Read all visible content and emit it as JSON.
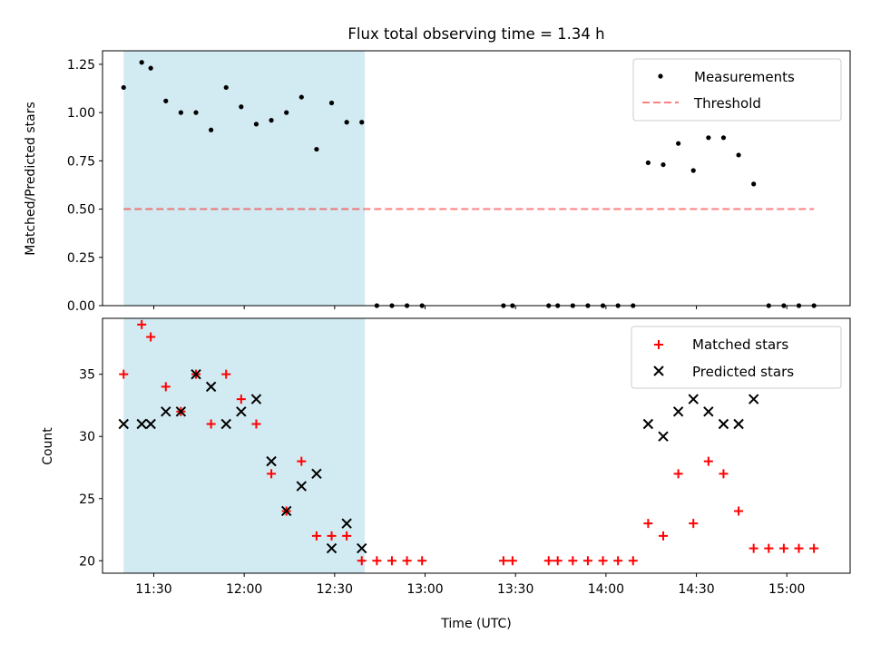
{
  "title": "Flux total observing time = 1.34 h",
  "colors": {
    "shade": "#add8e6",
    "measurement": "#000000",
    "threshold": "#ff0000",
    "matched": "#ff0000",
    "predicted": "#000000"
  },
  "chart_data": [
    {
      "type": "scatter",
      "ylabel": "Matched/Predicted stars",
      "xlim": [
        "11:13",
        "15:21"
      ],
      "ylim": [
        0,
        1.32
      ],
      "yticks": [
        0.0,
        0.25,
        0.5,
        0.75,
        1.0,
        1.25
      ],
      "ytick_labels": [
        "0.00",
        "0.25",
        "0.50",
        "0.75",
        "1.00",
        "1.25"
      ],
      "shaded_interval": [
        "11:20",
        "12:40"
      ],
      "legend": {
        "position": "upper right",
        "measurements_label": "Measurements",
        "threshold_label": "Threshold"
      },
      "threshold": {
        "value": 0.5,
        "x_start": "11:20",
        "x_end": "15:09"
      },
      "series": [
        {
          "name": "Measurements",
          "points": [
            [
              "11:20",
              1.13
            ],
            [
              "11:26",
              1.26
            ],
            [
              "11:29",
              1.23
            ],
            [
              "11:34",
              1.06
            ],
            [
              "11:39",
              1.0
            ],
            [
              "11:44",
              1.0
            ],
            [
              "11:49",
              0.91
            ],
            [
              "11:54",
              1.13
            ],
            [
              "11:59",
              1.03
            ],
            [
              "12:04",
              0.94
            ],
            [
              "12:09",
              0.96
            ],
            [
              "12:14",
              1.0
            ],
            [
              "12:19",
              1.08
            ],
            [
              "12:24",
              0.81
            ],
            [
              "12:29",
              1.05
            ],
            [
              "12:34",
              0.95
            ],
            [
              "12:39",
              0.95
            ],
            [
              "12:44",
              0.0
            ],
            [
              "12:49",
              0.0
            ],
            [
              "12:54",
              0.0
            ],
            [
              "12:59",
              0.0
            ],
            [
              "13:26",
              0.0
            ],
            [
              "13:29",
              0.0
            ],
            [
              "13:41",
              0.0
            ],
            [
              "13:44",
              0.0
            ],
            [
              "13:49",
              0.0
            ],
            [
              "13:54",
              0.0
            ],
            [
              "13:59",
              0.0
            ],
            [
              "14:04",
              0.0
            ],
            [
              "14:09",
              0.0
            ],
            [
              "14:14",
              0.74
            ],
            [
              "14:19",
              0.73
            ],
            [
              "14:24",
              0.84
            ],
            [
              "14:29",
              0.7
            ],
            [
              "14:34",
              0.87
            ],
            [
              "14:39",
              0.87
            ],
            [
              "14:44",
              0.78
            ],
            [
              "14:49",
              0.63
            ],
            [
              "14:54",
              0.0
            ],
            [
              "14:59",
              0.0
            ],
            [
              "15:04",
              0.0
            ],
            [
              "15:09",
              0.0
            ]
          ]
        }
      ]
    },
    {
      "type": "scatter",
      "xlabel": "Time (UTC)",
      "ylabel": "Count",
      "xlim": [
        "11:13",
        "15:21"
      ],
      "ylim": [
        19,
        39.5
      ],
      "xticks": [
        "11:30",
        "12:00",
        "12:30",
        "13:00",
        "13:30",
        "14:00",
        "14:30",
        "15:00"
      ],
      "yticks": [
        20,
        25,
        30,
        35
      ],
      "shaded_interval": [
        "11:20",
        "12:40"
      ],
      "legend": {
        "position": "upper right"
      },
      "series": [
        {
          "name": "Matched stars",
          "points": [
            [
              "11:20",
              35
            ],
            [
              "11:26",
              39
            ],
            [
              "11:29",
              38
            ],
            [
              "11:34",
              34
            ],
            [
              "11:39",
              32
            ],
            [
              "11:44",
              35
            ],
            [
              "11:49",
              31
            ],
            [
              "11:54",
              35
            ],
            [
              "11:59",
              33
            ],
            [
              "12:04",
              31
            ],
            [
              "12:09",
              27
            ],
            [
              "12:14",
              24
            ],
            [
              "12:19",
              28
            ],
            [
              "12:24",
              22
            ],
            [
              "12:29",
              22
            ],
            [
              "12:34",
              22
            ],
            [
              "12:39",
              20
            ],
            [
              "12:44",
              20
            ],
            [
              "12:49",
              20
            ],
            [
              "12:54",
              20
            ],
            [
              "12:59",
              20
            ],
            [
              "13:26",
              20
            ],
            [
              "13:29",
              20
            ],
            [
              "13:41",
              20
            ],
            [
              "13:44",
              20
            ],
            [
              "13:49",
              20
            ],
            [
              "13:54",
              20
            ],
            [
              "13:59",
              20
            ],
            [
              "14:04",
              20
            ],
            [
              "14:09",
              20
            ],
            [
              "14:14",
              23
            ],
            [
              "14:19",
              22
            ],
            [
              "14:24",
              27
            ],
            [
              "14:29",
              23
            ],
            [
              "14:34",
              28
            ],
            [
              "14:39",
              27
            ],
            [
              "14:44",
              24
            ],
            [
              "14:49",
              21
            ],
            [
              "14:54",
              21
            ],
            [
              "14:59",
              21
            ],
            [
              "15:04",
              21
            ],
            [
              "15:09",
              21
            ]
          ]
        },
        {
          "name": "Predicted stars",
          "points": [
            [
              "11:20",
              31
            ],
            [
              "11:26",
              31
            ],
            [
              "11:29",
              31
            ],
            [
              "11:34",
              32
            ],
            [
              "11:39",
              32
            ],
            [
              "11:44",
              35
            ],
            [
              "11:49",
              34
            ],
            [
              "11:54",
              31
            ],
            [
              "11:59",
              32
            ],
            [
              "12:04",
              33
            ],
            [
              "12:09",
              28
            ],
            [
              "12:14",
              24
            ],
            [
              "12:19",
              26
            ],
            [
              "12:24",
              27
            ],
            [
              "12:29",
              21
            ],
            [
              "12:34",
              23
            ],
            [
              "12:39",
              21
            ],
            [
              "14:14",
              31
            ],
            [
              "14:19",
              30
            ],
            [
              "14:24",
              32
            ],
            [
              "14:29",
              33
            ],
            [
              "14:34",
              32
            ],
            [
              "14:39",
              31
            ],
            [
              "14:44",
              31
            ],
            [
              "14:49",
              33
            ]
          ]
        }
      ]
    }
  ]
}
